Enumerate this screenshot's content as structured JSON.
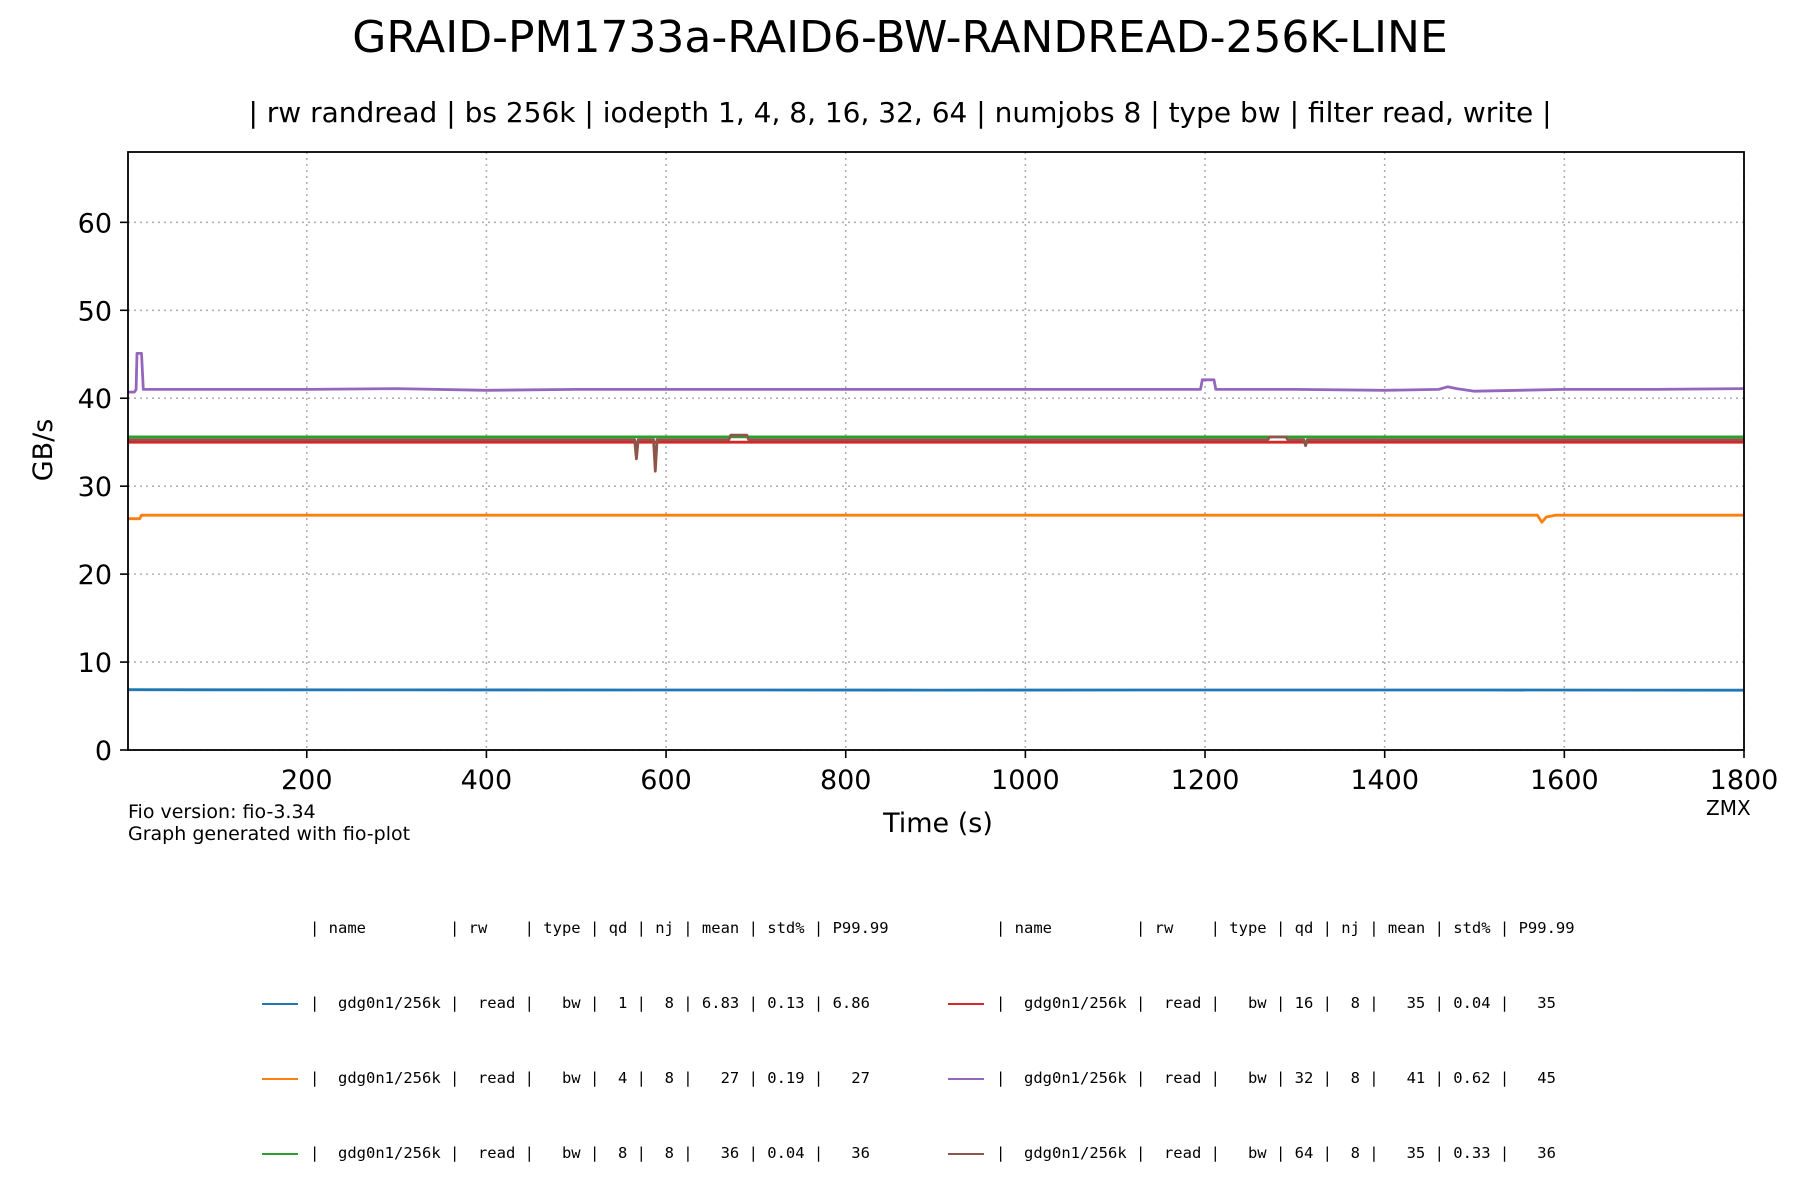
{
  "title": "GRAID-PM1733a-RAID6-BW-RANDREAD-256K-LINE",
  "subtitle": "| rw randread | bs 256k | iodepth 1, 4, 8, 16, 32, 64 | numjobs 8 | type bw | filter read, write |",
  "footer": {
    "fio_version": "Fio version: fio-3.34",
    "generator": "Graph generated with fio-plot",
    "watermark": "ZMX"
  },
  "legend": {
    "header": "| name         | rw    | type | qd | nj | mean | std% | P99.99",
    "rows": [
      "|  gdg0n1/256k |  read |   bw |  1 |  8 | 6.83 | 0.13 | 6.86",
      "|  gdg0n1/256k |  read |   bw |  4 |  8 |   27 | 0.19 |   27",
      "|  gdg0n1/256k |  read |   bw |  8 |  8 |   36 | 0.04 |   36",
      "|  gdg0n1/256k |  read |   bw | 16 |  8 |   35 | 0.04 |   35",
      "|  gdg0n1/256k |  read |   bw | 32 |  8 |   41 | 0.62 |   45",
      "|  gdg0n1/256k |  read |   bw | 64 |  8 |   35 | 0.33 |   36"
    ]
  },
  "chart_data": {
    "type": "line",
    "xlabel": "Time (s)",
    "ylabel": "GB/s",
    "xlim": [
      1,
      1800
    ],
    "ylim": [
      0,
      68
    ],
    "xticks": [
      200,
      400,
      600,
      800,
      1000,
      1200,
      1400,
      1600,
      1800
    ],
    "yticks": [
      0,
      10,
      20,
      30,
      40,
      50,
      60
    ],
    "grid": true,
    "legend_placement": "bottom",
    "series": [
      {
        "qd": 1,
        "color": "#1f77b4",
        "points": [
          [
            1,
            6.86
          ],
          [
            100,
            6.84
          ],
          [
            300,
            6.83
          ],
          [
            600,
            6.82
          ],
          [
            900,
            6.81
          ],
          [
            1200,
            6.82
          ],
          [
            1500,
            6.82
          ],
          [
            1800,
            6.8
          ]
        ]
      },
      {
        "qd": 4,
        "color": "#ff7f0e",
        "points": [
          [
            1,
            26.3
          ],
          [
            14,
            26.3
          ],
          [
            16,
            26.7
          ],
          [
            300,
            26.7
          ],
          [
            600,
            26.7
          ],
          [
            900,
            26.7
          ],
          [
            1200,
            26.7
          ],
          [
            1570,
            26.7
          ],
          [
            1575,
            25.9
          ],
          [
            1580,
            26.5
          ],
          [
            1590,
            26.7
          ],
          [
            1800,
            26.7
          ]
        ]
      },
      {
        "qd": 8,
        "color": "#2ca02c",
        "points": [
          [
            1,
            35.6
          ],
          [
            300,
            35.6
          ],
          [
            600,
            35.6
          ],
          [
            900,
            35.6
          ],
          [
            1200,
            35.6
          ],
          [
            1500,
            35.6
          ],
          [
            1800,
            35.6
          ]
        ]
      },
      {
        "qd": 16,
        "color": "#d62728",
        "points": [
          [
            1,
            35.0
          ],
          [
            300,
            35.0
          ],
          [
            600,
            35.0
          ],
          [
            900,
            35.0
          ],
          [
            1200,
            35.0
          ],
          [
            1500,
            35.0
          ],
          [
            1800,
            35.0
          ]
        ]
      },
      {
        "qd": 32,
        "color": "#9467bd",
        "points": [
          [
            1,
            40.7
          ],
          [
            8,
            40.7
          ],
          [
            10,
            41.0
          ],
          [
            11,
            45.1
          ],
          [
            16,
            45.1
          ],
          [
            18,
            41.0
          ],
          [
            100,
            41.0
          ],
          [
            150,
            41.0
          ],
          [
            200,
            41.0
          ],
          [
            300,
            41.1
          ],
          [
            400,
            40.9
          ],
          [
            500,
            41.0
          ],
          [
            600,
            41.0
          ],
          [
            700,
            41.0
          ],
          [
            800,
            41.0
          ],
          [
            900,
            41.0
          ],
          [
            1000,
            41.0
          ],
          [
            1100,
            41.0
          ],
          [
            1195,
            41.0
          ],
          [
            1197,
            42.1
          ],
          [
            1210,
            42.1
          ],
          [
            1212,
            41.0
          ],
          [
            1300,
            41.0
          ],
          [
            1400,
            40.9
          ],
          [
            1460,
            41.0
          ],
          [
            1470,
            41.3
          ],
          [
            1480,
            41.1
          ],
          [
            1500,
            40.8
          ],
          [
            1600,
            41.0
          ],
          [
            1700,
            41.0
          ],
          [
            1800,
            41.1
          ]
        ]
      },
      {
        "qd": 64,
        "color": "#8c564b",
        "points": [
          [
            1,
            35.3
          ],
          [
            200,
            35.3
          ],
          [
            400,
            35.3
          ],
          [
            565,
            35.3
          ],
          [
            567,
            33.1
          ],
          [
            569,
            35.3
          ],
          [
            586,
            35.3
          ],
          [
            588,
            31.7
          ],
          [
            590,
            35.3
          ],
          [
            670,
            35.3
          ],
          [
            672,
            35.8
          ],
          [
            690,
            35.8
          ],
          [
            692,
            35.3
          ],
          [
            900,
            35.3
          ],
          [
            1270,
            35.3
          ],
          [
            1272,
            35.6
          ],
          [
            1290,
            35.6
          ],
          [
            1292,
            35.3
          ],
          [
            1310,
            35.3
          ],
          [
            1312,
            34.6
          ],
          [
            1314,
            35.3
          ],
          [
            1500,
            35.3
          ],
          [
            1800,
            35.3
          ]
        ]
      }
    ]
  }
}
